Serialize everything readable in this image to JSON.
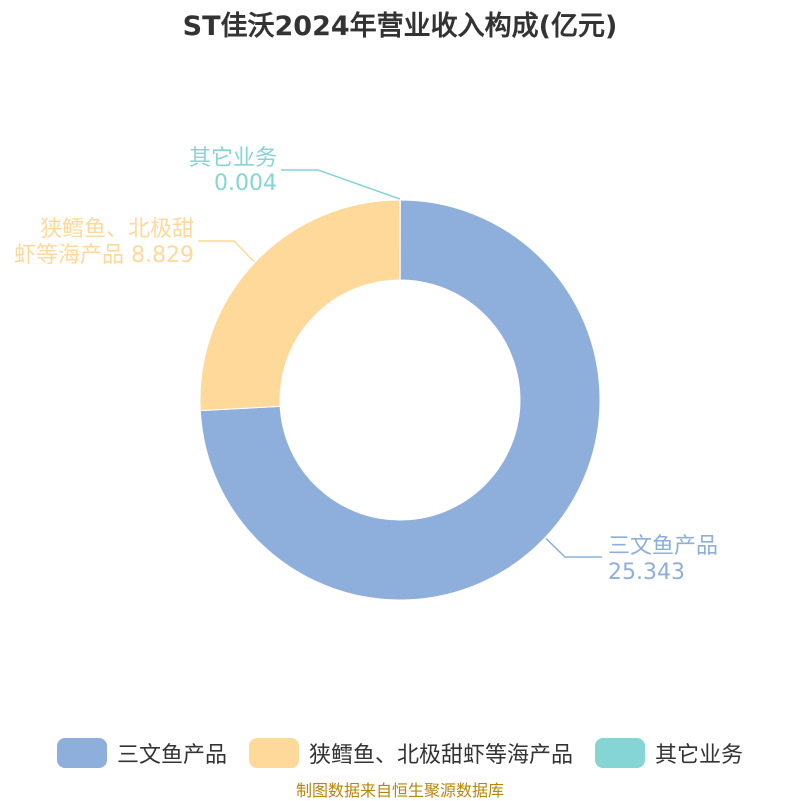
{
  "chart_data": {
    "type": "pie",
    "title": "ST佳沃2024年营业收入构成(亿元)",
    "variant": "donut",
    "categories": [
      "三文鱼产品",
      "狭鳕鱼、北极甜虾等海产品",
      "其它业务"
    ],
    "values": [
      25.343,
      8.829,
      0.004
    ],
    "colors": [
      "#8eaedb",
      "#ffd999",
      "#85d5d5"
    ],
    "value_labels": [
      "25.343",
      "8.829",
      "0.004"
    ],
    "legend": "bottom"
  },
  "source": "制图数据来自恒生聚源数据库"
}
